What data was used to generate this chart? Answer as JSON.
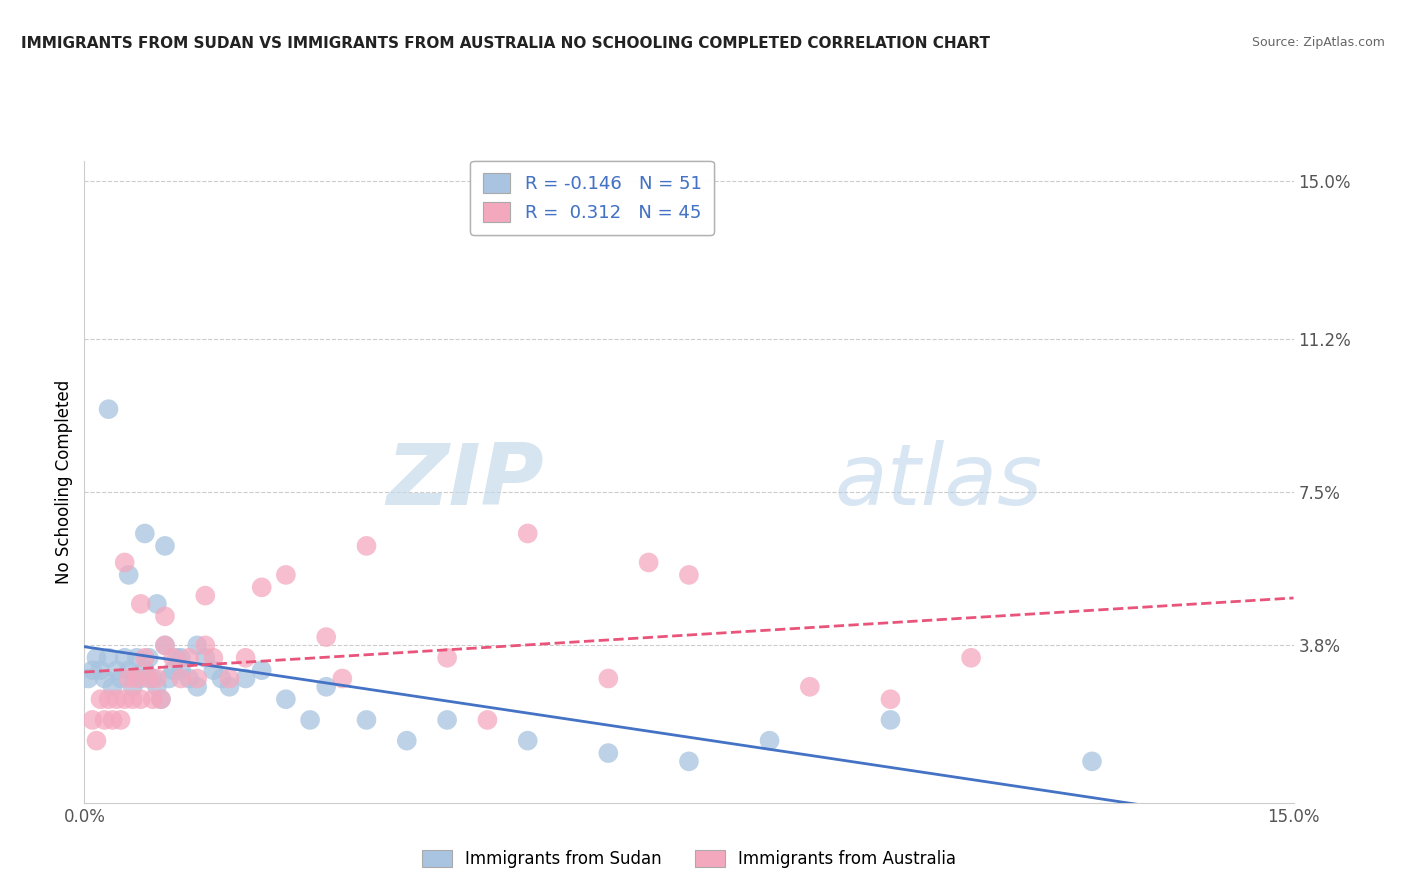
{
  "title": "IMMIGRANTS FROM SUDAN VS IMMIGRANTS FROM AUSTRALIA NO SCHOOLING COMPLETED CORRELATION CHART",
  "source": "Source: ZipAtlas.com",
  "ylabel": "No Schooling Completed",
  "yticks": [
    0.0,
    3.8,
    7.5,
    11.2,
    15.0
  ],
  "ytick_labels": [
    "",
    "3.8%",
    "7.5%",
    "11.2%",
    "15.0%"
  ],
  "xtick_labels": [
    "0.0%",
    "15.0%"
  ],
  "xlim": [
    0.0,
    15.0
  ],
  "ylim": [
    0.0,
    15.5
  ],
  "sudan_color": "#a8c4e0",
  "australia_color": "#f4a8be",
  "sudan_line_color": "#4472c4",
  "australia_line_color": "#e8547a",
  "sudan_R": "-0.146",
  "sudan_N": "51",
  "australia_R": "0.312",
  "australia_N": "45",
  "legend_label_sudan": "Immigrants from Sudan",
  "legend_label_australia": "Immigrants from Australia",
  "watermark_zip": "ZIP",
  "watermark_atlas": "atlas",
  "sudan_x": [
    0.05,
    0.1,
    0.15,
    0.2,
    0.25,
    0.3,
    0.35,
    0.4,
    0.45,
    0.5,
    0.55,
    0.6,
    0.65,
    0.7,
    0.75,
    0.8,
    0.85,
    0.9,
    0.95,
    1.0,
    1.05,
    1.1,
    1.15,
    1.2,
    1.3,
    1.4,
    1.5,
    1.6,
    1.7,
    1.8,
    2.0,
    2.2,
    2.5,
    2.8,
    3.0,
    3.5,
    4.0,
    4.5,
    5.5,
    6.5,
    7.5,
    8.5,
    10.0,
    12.5,
    0.3,
    0.55,
    0.75,
    0.9,
    1.0,
    1.2,
    1.4
  ],
  "sudan_y": [
    3.0,
    3.2,
    3.5,
    3.2,
    3.0,
    3.5,
    2.8,
    3.2,
    3.0,
    3.5,
    3.2,
    2.8,
    3.5,
    3.0,
    3.2,
    3.5,
    3.0,
    2.8,
    2.5,
    3.8,
    3.0,
    3.2,
    3.5,
    3.2,
    3.0,
    2.8,
    3.5,
    3.2,
    3.0,
    2.8,
    3.0,
    3.2,
    2.5,
    2.0,
    2.8,
    2.0,
    1.5,
    2.0,
    1.5,
    1.2,
    1.0,
    1.5,
    2.0,
    1.0,
    9.5,
    5.5,
    6.5,
    4.8,
    6.2,
    3.5,
    3.8
  ],
  "australia_x": [
    0.1,
    0.15,
    0.2,
    0.25,
    0.3,
    0.35,
    0.4,
    0.45,
    0.5,
    0.55,
    0.6,
    0.65,
    0.7,
    0.75,
    0.8,
    0.85,
    0.9,
    0.95,
    1.0,
    1.1,
    1.2,
    1.3,
    1.4,
    1.5,
    1.6,
    1.8,
    2.0,
    2.5,
    3.0,
    3.5,
    4.5,
    5.5,
    6.5,
    7.5,
    9.0,
    11.0,
    0.5,
    0.7,
    1.0,
    1.5,
    2.2,
    3.2,
    5.0,
    7.0,
    10.0
  ],
  "australia_y": [
    2.0,
    1.5,
    2.5,
    2.0,
    2.5,
    2.0,
    2.5,
    2.0,
    2.5,
    3.0,
    2.5,
    3.0,
    2.5,
    3.5,
    3.0,
    2.5,
    3.0,
    2.5,
    3.8,
    3.5,
    3.0,
    3.5,
    3.0,
    5.0,
    3.5,
    3.0,
    3.5,
    5.5,
    4.0,
    6.2,
    3.5,
    6.5,
    3.0,
    5.5,
    2.8,
    3.5,
    5.8,
    4.8,
    4.5,
    3.8,
    5.2,
    3.0,
    2.0,
    5.8,
    2.5
  ]
}
